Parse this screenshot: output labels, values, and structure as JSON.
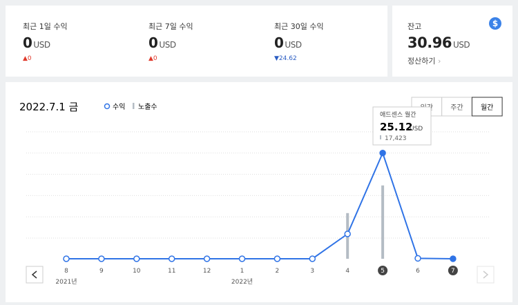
{
  "currency": "USD",
  "summary": [
    {
      "label": "최근 1일 수익",
      "value": 0,
      "change": 0,
      "direction": "up"
    },
    {
      "label": "최근 7일 수익",
      "value": 0,
      "change": 0,
      "direction": "up"
    },
    {
      "label": "최근 30일 수익",
      "value": 0,
      "change": 24.62,
      "direction": "down"
    }
  ],
  "balance": {
    "label": "잔고",
    "value": 30.96,
    "action": "정산하기"
  },
  "chart": {
    "date": "2022.7.1 금",
    "periods": [
      "일간",
      "주간",
      "월간"
    ],
    "selected_period": 2,
    "categories": [
      "8",
      "9",
      "10",
      "11",
      "12",
      "1",
      "2",
      "3",
      "4",
      "5",
      "6",
      "7"
    ],
    "year_labels": [
      "2021년",
      null,
      null,
      null,
      null,
      "2022년",
      null,
      null,
      null,
      null,
      null,
      null
    ],
    "highlighted": [
      9,
      11
    ],
    "series": [
      {
        "name": "수익",
        "color": "#2f73e6",
        "values": [
          0,
          0,
          0,
          0,
          0,
          0,
          0,
          0,
          5.9,
          25.12,
          0.1,
          0
        ]
      },
      {
        "name": "노출수",
        "color": "#b4bcc4",
        "axis": "y2",
        "values": [
          0,
          0,
          0,
          0,
          0,
          0,
          0,
          0,
          10850,
          17423,
          0,
          0
        ],
        "value_labels": [
          null,
          null,
          null,
          null,
          null,
          null,
          null,
          null,
          null,
          "17,423",
          null,
          null
        ]
      }
    ],
    "ylim": [
      0,
      30
    ],
    "y2lim": [
      0,
      30000
    ],
    "tooltip": {
      "title": "애드센스 월간",
      "index": 9
    }
  }
}
